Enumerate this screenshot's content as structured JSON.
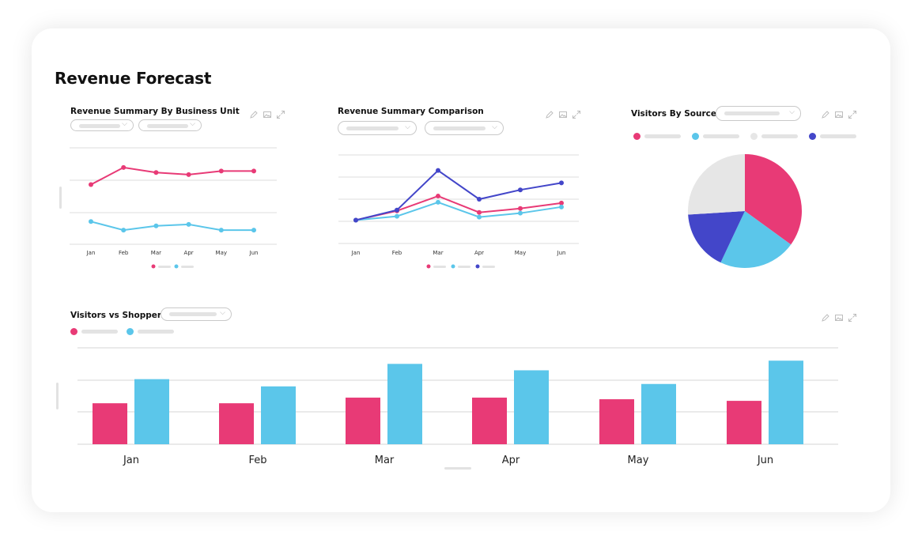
{
  "page": {
    "title": "Revenue Forecast"
  },
  "colors": {
    "pink": "#E83A76",
    "blue": "#5BC6EA",
    "indigo": "#4346C9",
    "gray": "#E6E6E6"
  },
  "widgets": {
    "business_unit": {
      "title": "Revenue Summary By Business Unit",
      "icons": [
        "edit-icon",
        "image-icon",
        "expand-icon"
      ]
    },
    "comparison": {
      "title": "Revenue Summary Comparison",
      "icons": [
        "edit-icon",
        "image-icon",
        "expand-icon"
      ]
    },
    "visitors_source": {
      "title": "Visitors By Source",
      "icons": [
        "edit-icon",
        "image-icon",
        "expand-icon"
      ]
    },
    "visitors_shoppers": {
      "title": "Visitors vs Shoppers",
      "icons": [
        "edit-icon",
        "image-icon",
        "expand-icon"
      ]
    }
  },
  "chart_data": [
    {
      "type": "line",
      "categories": [
        "Jan",
        "Feb",
        "Mar",
        "Apr",
        "May",
        "Jun"
      ],
      "series": [
        {
          "color": "#E83A76",
          "values": [
            85,
            109,
            102,
            99,
            104,
            104
          ]
        },
        {
          "color": "#5BC6EA",
          "values": [
            33,
            21,
            27,
            29,
            21,
            21
          ]
        }
      ],
      "ylim": [
        0,
        150
      ],
      "grid": true
    },
    {
      "type": "line",
      "categories": [
        "Jan",
        "Feb",
        "Mar",
        "Apr",
        "May",
        "Jun"
      ],
      "series": [
        {
          "color": "#E83A76",
          "values": [
            0,
            12,
            31,
            10,
            15,
            22
          ]
        },
        {
          "color": "#5BC6EA",
          "values": [
            0,
            5,
            23,
            4,
            9,
            17
          ]
        },
        {
          "color": "#4346C9",
          "values": [
            0,
            13,
            64,
            27,
            39,
            48
          ]
        }
      ],
      "ylim": [
        -30,
        85
      ],
      "grid": true
    },
    {
      "type": "pie",
      "slices": [
        {
          "color": "#E83A76",
          "value": 35
        },
        {
          "color": "#5BC6EA",
          "value": 22
        },
        {
          "color": "#4346C9",
          "value": 17
        },
        {
          "color": "#E6E6E6",
          "value": 26
        }
      ]
    },
    {
      "type": "bar",
      "categories": [
        "Jan",
        "Feb",
        "Mar",
        "Apr",
        "May",
        "Jun"
      ],
      "series": [
        {
          "color": "#E83A76",
          "values": [
            51,
            51,
            58,
            58,
            56,
            54
          ]
        },
        {
          "color": "#5BC6EA",
          "values": [
            81,
            72,
            100,
            92,
            75,
            104
          ]
        }
      ],
      "ylim": [
        0,
        120
      ],
      "grid": true
    }
  ]
}
